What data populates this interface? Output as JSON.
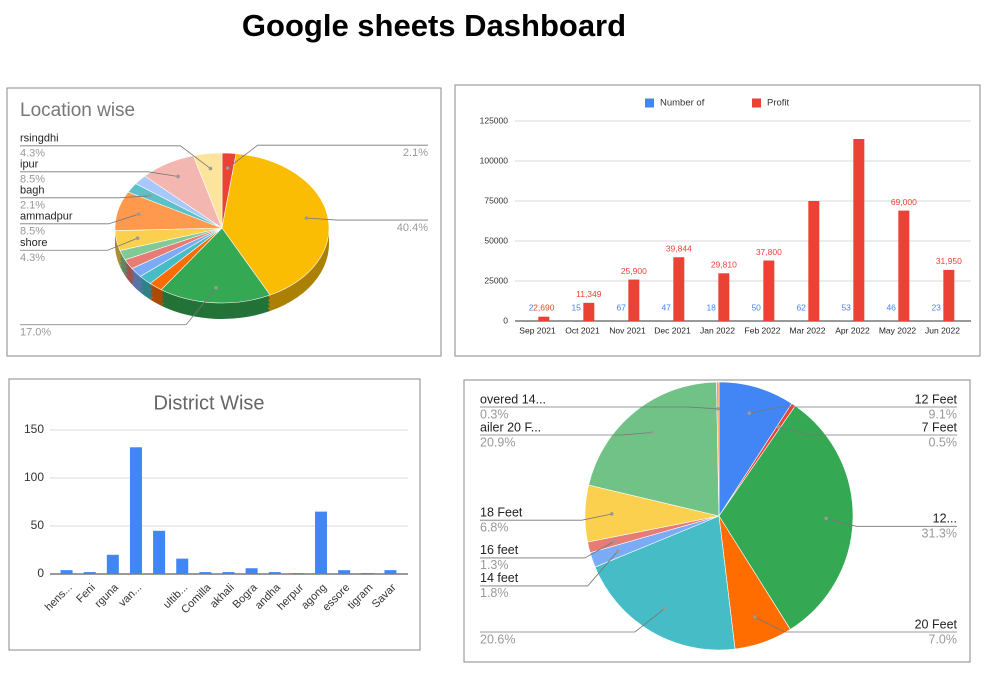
{
  "title": "Google sheets Dashboard",
  "chart_data": [
    {
      "type": "pie",
      "title": "Location wise",
      "three_d": true,
      "categories": [
        null,
        null,
        null,
        null,
        null,
        null,
        null,
        null,
        "shore",
        "ammadpur",
        "bagh",
        null,
        "ipur",
        "rsingdhi"
      ],
      "values": [
        2.1,
        40.4,
        17.0,
        2.1,
        2.1,
        2.1,
        2.1,
        2.1,
        4.3,
        8.5,
        2.1,
        2.1,
        8.5,
        4.3
      ],
      "value_labels": [
        "2.1%",
        "40.4%",
        "17.0%",
        null,
        null,
        null,
        null,
        null,
        "4.3%",
        "8.5%",
        "2.1%",
        null,
        "8.5%",
        "4.3%"
      ],
      "colors": [
        "#ea4335",
        "#fbbc04",
        "#34a853",
        "#ff6d01",
        "#46bdc6",
        "#7baaf7",
        "#e67c73",
        "#81c995",
        "#fcd04f",
        "#ff994d",
        "#5bc0c8",
        "#a8c7fa",
        "#f4b6b0",
        "#fce49c"
      ]
    },
    {
      "type": "bar",
      "legend": "top",
      "grid": true,
      "data_labels": true,
      "categories": [
        "Sep 2021",
        "Oct 2021",
        "Nov 2021",
        "Dec 2021",
        "Jan 2022",
        "Feb 2022",
        "Mar 2022",
        "Apr 2022",
        "May 2022",
        "Jun 2022"
      ],
      "series": [
        {
          "name": "Number of",
          "color": "#4285f4",
          "values": [
            2,
            15,
            67,
            47,
            18,
            50,
            62,
            53,
            46,
            23
          ]
        },
        {
          "name": "Profit",
          "color": "#ea4335",
          "values": [
            2690,
            11349,
            25900,
            39844,
            29810,
            37800,
            75000,
            113750,
            69000,
            31950
          ],
          "value_labels": [
            "2,690",
            "11,349",
            "25,900",
            "39,844",
            "29,810",
            "37,800",
            null,
            null,
            "69,000",
            "31,950"
          ]
        }
      ],
      "ylim": [
        0,
        125000
      ],
      "yticks": [
        0,
        25000,
        50000,
        75000,
        100000,
        125000
      ]
    },
    {
      "type": "bar",
      "title": "District Wise",
      "grid": true,
      "color": "#4285f4",
      "categories": [
        "hens...",
        "Feni",
        "rguna",
        "van...",
        null,
        "ultib...",
        "Comilla",
        "akhali",
        "Bogra",
        "andha",
        "herpur",
        "agong",
        "essore",
        "tigram",
        "Savar"
      ],
      "values": [
        4,
        2,
        20,
        132,
        45,
        16,
        2,
        2,
        6,
        2,
        1,
        65,
        4,
        1,
        4
      ],
      "ylim": [
        0,
        150
      ],
      "yticks": [
        0,
        50,
        100,
        150
      ]
    },
    {
      "type": "pie",
      "categories": [
        "12 Feet",
        "7 Feet",
        "12...",
        "20 Feet",
        null,
        "14 feet",
        "16 feet",
        "18 Feet",
        "ailer 20 F...",
        "overed 14..."
      ],
      "values": [
        9.1,
        0.5,
        31.3,
        7.0,
        20.6,
        1.8,
        1.3,
        6.8,
        20.9,
        0.3
      ],
      "value_labels": [
        "9.1%",
        "0.5%",
        "31.3%",
        "7.0%",
        "20.6%",
        "1.8%",
        "1.3%",
        "6.8%",
        "20.9%",
        "0.3%"
      ],
      "colors": [
        "#4285f4",
        "#ea4335",
        "#34a853",
        "#ff6d01",
        "#46bdc6",
        "#7baaf7",
        "#e67c73",
        "#fcd04f",
        "#71c287",
        "#ff994d"
      ]
    }
  ]
}
